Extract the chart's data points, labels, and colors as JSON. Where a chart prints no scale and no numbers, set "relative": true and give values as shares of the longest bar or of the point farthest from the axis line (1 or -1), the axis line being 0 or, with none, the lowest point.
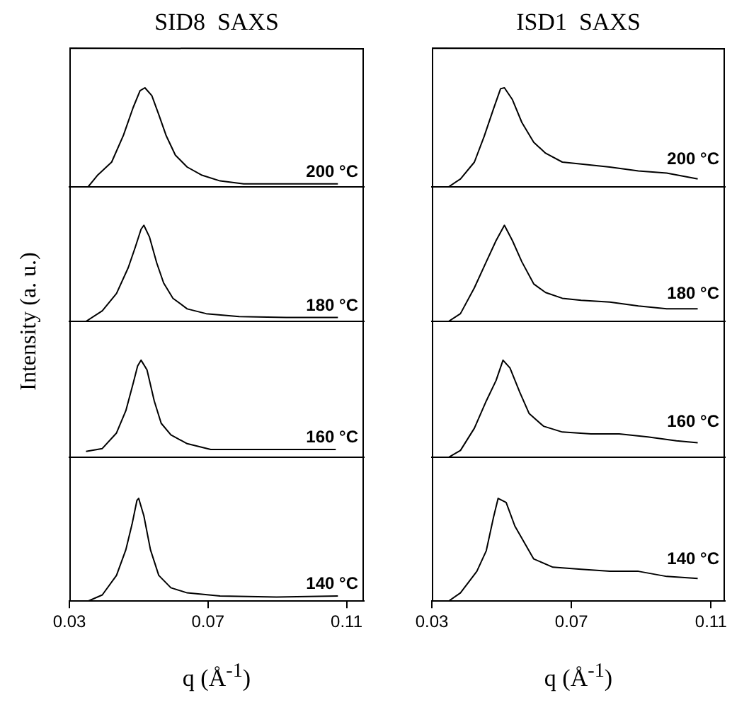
{
  "chart_data": [
    {
      "type": "line",
      "title": "SID8  SAXS",
      "ylabel": "Intensity (a. u.)",
      "relative": true,
      "xlim": [
        0.03,
        0.115
      ],
      "tick_labels": false,
      "marker": "none",
      "line_style": "solid",
      "grid": false,
      "annotations": [
        "200 °C"
      ],
      "series": [
        {
          "color": "#000000",
          "x": [
            0.0354,
            0.0382,
            0.0422,
            0.0456,
            0.0484,
            0.0504,
            0.0518,
            0.0538,
            0.0558,
            0.0579,
            0.0606,
            0.064,
            0.0681,
            0.0735,
            0.0803,
            0.0898,
            0.1035,
            0.1075
          ],
          "values": [
            0,
            0.12,
            0.25,
            0.52,
            0.8,
            0.97,
            1,
            0.92,
            0.73,
            0.52,
            0.32,
            0.2,
            0.12,
            0.06,
            0.03,
            0.03,
            0.03,
            0.03
          ]
        }
      ]
    },
    {
      "type": "line",
      "relative": true,
      "xlim": [
        0.03,
        0.115
      ],
      "tick_labels": false,
      "marker": "none",
      "line_style": "solid",
      "grid": false,
      "annotations": [
        "180 °C"
      ],
      "series": [
        {
          "color": "#000000",
          "x": [
            0.0348,
            0.0395,
            0.0436,
            0.047,
            0.049,
            0.0507,
            0.0515,
            0.0531,
            0.0552,
            0.0572,
            0.0599,
            0.064,
            0.0695,
            0.079,
            0.0926,
            0.1075
          ],
          "values": [
            0,
            0.11,
            0.29,
            0.56,
            0.77,
            0.96,
            1,
            0.88,
            0.61,
            0.4,
            0.24,
            0.13,
            0.08,
            0.05,
            0.04,
            0.04
          ]
        }
      ]
    },
    {
      "type": "line",
      "relative": true,
      "xlim": [
        0.03,
        0.115
      ],
      "tick_labels": false,
      "marker": "none",
      "line_style": "solid",
      "grid": false,
      "annotations": [
        "160 °C"
      ],
      "series": [
        {
          "color": "#000000",
          "x": [
            0.0348,
            0.0395,
            0.0436,
            0.0463,
            0.0484,
            0.0497,
            0.0507,
            0.0524,
            0.0545,
            0.0565,
            0.0593,
            0.064,
            0.0708,
            0.083,
            0.0966,
            0.1069
          ],
          "values": [
            0.06,
            0.09,
            0.25,
            0.48,
            0.76,
            0.94,
            1,
            0.9,
            0.58,
            0.35,
            0.23,
            0.14,
            0.08,
            0.08,
            0.08,
            0.08
          ]
        }
      ]
    },
    {
      "type": "line",
      "relative": true,
      "xlim": [
        0.03,
        0.115
      ],
      "xticks": [
        0.03,
        0.07,
        0.11
      ],
      "tick_labels": "x",
      "xlabel": "q (Å$^{-1}$)",
      "marker": "none",
      "line_style": "solid",
      "grid": false,
      "annotations": [
        "140 °C"
      ],
      "series": [
        {
          "color": "#000000",
          "x": [
            0.0354,
            0.0395,
            0.0436,
            0.0463,
            0.0481,
            0.0495,
            0.05,
            0.0515,
            0.0534,
            0.0558,
            0.0593,
            0.064,
            0.0735,
            0.0898,
            0.1075
          ],
          "values": [
            0,
            0.06,
            0.25,
            0.5,
            0.75,
            0.98,
            1,
            0.83,
            0.5,
            0.25,
            0.13,
            0.08,
            0.05,
            0.04,
            0.05
          ]
        }
      ]
    },
    {
      "type": "line",
      "title": "ISD1  SAXS",
      "relative": true,
      "xlim": [
        0.03,
        0.114
      ],
      "tick_labels": false,
      "marker": "none",
      "line_style": "solid",
      "grid": false,
      "annotations": [
        "200 °C"
      ],
      "series": [
        {
          "color": "#000000",
          "x": [
            0.0348,
            0.0382,
            0.0422,
            0.045,
            0.0477,
            0.0497,
            0.0508,
            0.0531,
            0.0558,
            0.0592,
            0.0626,
            0.0674,
            0.0728,
            0.081,
            0.0892,
            0.0973,
            0.1062
          ],
          "values": [
            0,
            0.08,
            0.25,
            0.51,
            0.79,
            0.99,
            1,
            0.88,
            0.65,
            0.45,
            0.34,
            0.25,
            0.23,
            0.2,
            0.16,
            0.14,
            0.08
          ]
        }
      ]
    },
    {
      "type": "line",
      "relative": true,
      "xlim": [
        0.03,
        0.114
      ],
      "tick_labels": false,
      "marker": "none",
      "line_style": "solid",
      "grid": false,
      "annotations": [
        "180 °C"
      ],
      "series": [
        {
          "color": "#000000",
          "x": [
            0.0348,
            0.0382,
            0.0422,
            0.0456,
            0.0484,
            0.0508,
            0.0531,
            0.0558,
            0.0592,
            0.0626,
            0.0674,
            0.0728,
            0.081,
            0.0892,
            0.0973,
            0.1062
          ],
          "values": [
            0,
            0.08,
            0.35,
            0.62,
            0.84,
            1,
            0.84,
            0.62,
            0.39,
            0.3,
            0.24,
            0.22,
            0.2,
            0.16,
            0.13,
            0.13
          ]
        }
      ]
    },
    {
      "type": "line",
      "relative": true,
      "xlim": [
        0.03,
        0.114
      ],
      "tick_labels": false,
      "marker": "none",
      "line_style": "solid",
      "grid": false,
      "annotations": [
        "160 °C"
      ],
      "series": [
        {
          "color": "#000000",
          "x": [
            0.0348,
            0.0382,
            0.0422,
            0.0456,
            0.0484,
            0.0504,
            0.0524,
            0.0552,
            0.0579,
            0.062,
            0.0674,
            0.0756,
            0.0837,
            0.0919,
            0.1001,
            0.1062
          ],
          "values": [
            0,
            0.07,
            0.3,
            0.58,
            0.79,
            1,
            0.92,
            0.67,
            0.45,
            0.32,
            0.26,
            0.24,
            0.24,
            0.21,
            0.17,
            0.15
          ]
        }
      ]
    },
    {
      "type": "line",
      "relative": true,
      "xlim": [
        0.03,
        0.114
      ],
      "xticks": [
        0.03,
        0.07,
        0.11
      ],
      "tick_labels": "x",
      "xlabel": "q (Å$^{-1}$)",
      "marker": "none",
      "line_style": "solid",
      "grid": false,
      "annotations": [
        "140 °C"
      ],
      "series": [
        {
          "color": "#000000",
          "x": [
            0.0348,
            0.0382,
            0.0429,
            0.0456,
            0.0477,
            0.049,
            0.0513,
            0.0538,
            0.0565,
            0.0592,
            0.0647,
            0.0728,
            0.081,
            0.0892,
            0.0973,
            0.1062
          ],
          "values": [
            0,
            0.08,
            0.29,
            0.49,
            0.82,
            1,
            0.96,
            0.73,
            0.57,
            0.41,
            0.33,
            0.31,
            0.29,
            0.29,
            0.24,
            0.22
          ]
        }
      ]
    }
  ]
}
